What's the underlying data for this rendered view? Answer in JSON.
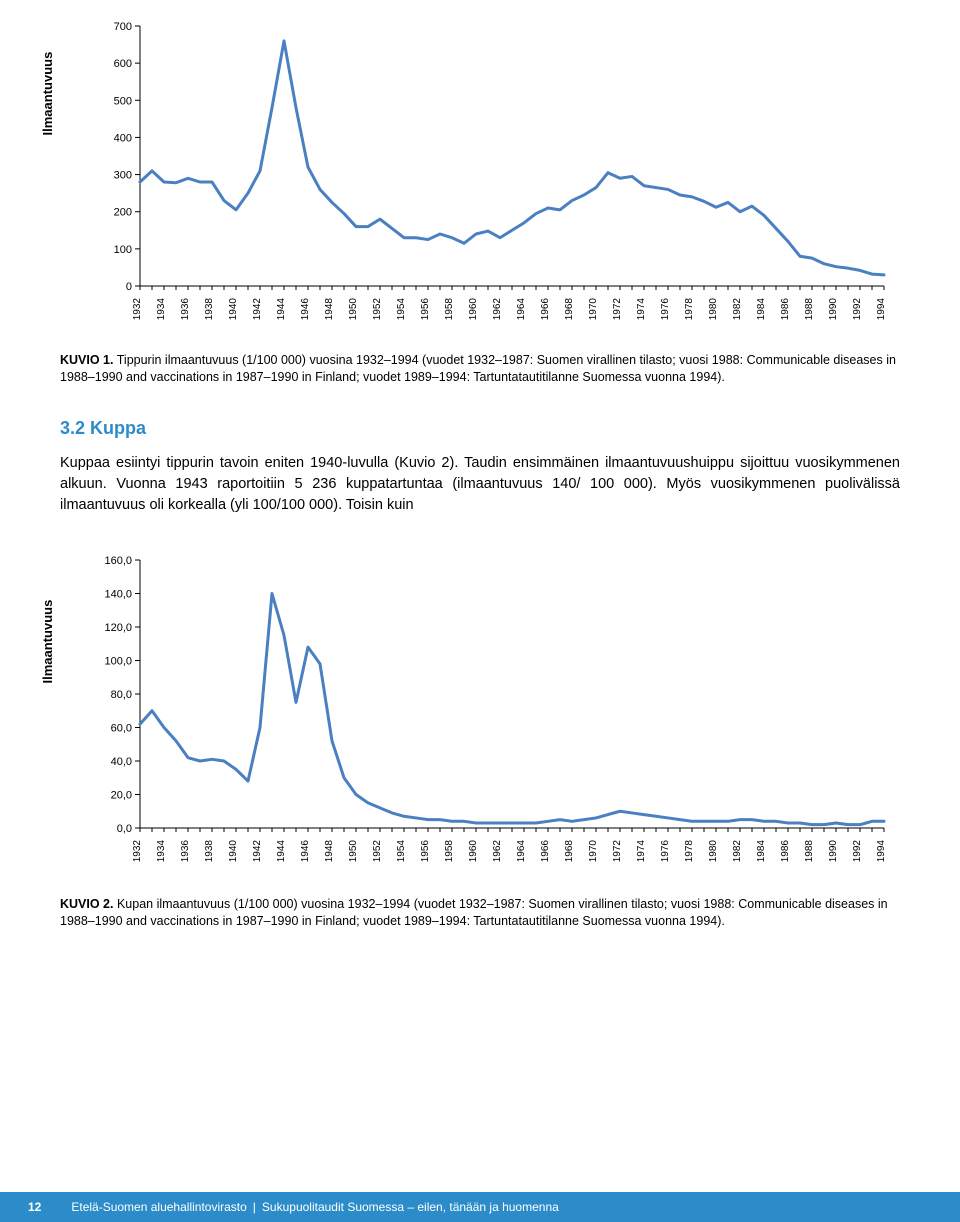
{
  "chart1": {
    "type": "line",
    "y_axis_label": "Ilmaantuvuus",
    "line_color": "#4a7fc1",
    "line_width": 3,
    "background_color": "#ffffff",
    "axis_color": "#000000",
    "ylim": [
      0,
      700
    ],
    "ytick_step": 100,
    "y_ticks": [
      0,
      100,
      200,
      300,
      400,
      500,
      600,
      700
    ],
    "x_ticks": [
      1932,
      1934,
      1936,
      1938,
      1940,
      1942,
      1944,
      1946,
      1948,
      1950,
      1952,
      1954,
      1956,
      1958,
      1960,
      1962,
      1964,
      1966,
      1968,
      1970,
      1972,
      1974,
      1976,
      1978,
      1980,
      1982,
      1984,
      1986,
      1988,
      1990,
      1992,
      1994
    ],
    "xmin": 1932,
    "xmax": 1994,
    "label_fontsize": 11,
    "x_label_rotation": -90,
    "data": [
      {
        "x": 1932,
        "y": 280
      },
      {
        "x": 1933,
        "y": 310
      },
      {
        "x": 1934,
        "y": 280
      },
      {
        "x": 1935,
        "y": 278
      },
      {
        "x": 1936,
        "y": 290
      },
      {
        "x": 1937,
        "y": 280
      },
      {
        "x": 1938,
        "y": 280
      },
      {
        "x": 1939,
        "y": 230
      },
      {
        "x": 1940,
        "y": 205
      },
      {
        "x": 1941,
        "y": 250
      },
      {
        "x": 1942,
        "y": 310
      },
      {
        "x": 1943,
        "y": 480
      },
      {
        "x": 1944,
        "y": 660
      },
      {
        "x": 1945,
        "y": 480
      },
      {
        "x": 1946,
        "y": 320
      },
      {
        "x": 1947,
        "y": 260
      },
      {
        "x": 1948,
        "y": 225
      },
      {
        "x": 1949,
        "y": 195
      },
      {
        "x": 1950,
        "y": 160
      },
      {
        "x": 1951,
        "y": 160
      },
      {
        "x": 1952,
        "y": 180
      },
      {
        "x": 1953,
        "y": 155
      },
      {
        "x": 1954,
        "y": 130
      },
      {
        "x": 1955,
        "y": 130
      },
      {
        "x": 1956,
        "y": 125
      },
      {
        "x": 1957,
        "y": 140
      },
      {
        "x": 1958,
        "y": 130
      },
      {
        "x": 1959,
        "y": 115
      },
      {
        "x": 1960,
        "y": 140
      },
      {
        "x": 1961,
        "y": 148
      },
      {
        "x": 1962,
        "y": 130
      },
      {
        "x": 1963,
        "y": 150
      },
      {
        "x": 1964,
        "y": 170
      },
      {
        "x": 1965,
        "y": 195
      },
      {
        "x": 1966,
        "y": 210
      },
      {
        "x": 1967,
        "y": 205
      },
      {
        "x": 1968,
        "y": 230
      },
      {
        "x": 1969,
        "y": 245
      },
      {
        "x": 1970,
        "y": 265
      },
      {
        "x": 1971,
        "y": 305
      },
      {
        "x": 1972,
        "y": 290
      },
      {
        "x": 1973,
        "y": 295
      },
      {
        "x": 1974,
        "y": 270
      },
      {
        "x": 1975,
        "y": 265
      },
      {
        "x": 1976,
        "y": 260
      },
      {
        "x": 1977,
        "y": 245
      },
      {
        "x": 1978,
        "y": 240
      },
      {
        "x": 1979,
        "y": 228
      },
      {
        "x": 1980,
        "y": 212
      },
      {
        "x": 1981,
        "y": 225
      },
      {
        "x": 1982,
        "y": 200
      },
      {
        "x": 1983,
        "y": 215
      },
      {
        "x": 1984,
        "y": 190
      },
      {
        "x": 1985,
        "y": 155
      },
      {
        "x": 1986,
        "y": 120
      },
      {
        "x": 1987,
        "y": 80
      },
      {
        "x": 1988,
        "y": 75
      },
      {
        "x": 1989,
        "y": 60
      },
      {
        "x": 1990,
        "y": 52
      },
      {
        "x": 1991,
        "y": 48
      },
      {
        "x": 1992,
        "y": 42
      },
      {
        "x": 1993,
        "y": 32
      },
      {
        "x": 1994,
        "y": 30
      }
    ]
  },
  "caption1": {
    "lead": "KUVIO 1.",
    "text": " Tippurin ilmaantuvuus (1/100 000) vuosina 1932–1994 (vuodet 1932–1987: Suomen virallinen tilasto; vuosi 1988: Communicable diseases in 1988–1990 and vaccinations in 1987–1990 in Finland; vuodet 1989–1994: Tartuntatautitilanne Suomessa vuonna 1994)."
  },
  "section_head": "3.2 Kuppa",
  "section_head_color": "#2c8cc9",
  "body_text": "Kuppaa esiintyi tippurin tavoin eniten 1940-luvulla (Kuvio 2). Taudin ensimmäinen ilmaantuvuushuippu sijoittuu vuosikymmenen alkuun. Vuonna 1943 raportoitiin 5 236 kuppatartuntaa (ilmaantuvuus 140/ 100 000). Myös vuosikymmenen puolivälissä ilmaantuvuus oli korkealla (yli 100/100 000). Toisin kuin",
  "chart2": {
    "type": "line",
    "y_axis_label": "Ilmaantuvuus",
    "line_color": "#4a7fc1",
    "line_width": 3,
    "background_color": "#ffffff",
    "axis_color": "#000000",
    "ylim": [
      0,
      160
    ],
    "ytick_step": 20,
    "y_ticks_fmt": ",0",
    "y_ticks": [
      0,
      20,
      40,
      60,
      80,
      100,
      120,
      140,
      160
    ],
    "x_ticks": [
      1932,
      1934,
      1936,
      1938,
      1940,
      1942,
      1944,
      1946,
      1948,
      1950,
      1952,
      1954,
      1956,
      1958,
      1960,
      1962,
      1964,
      1966,
      1968,
      1970,
      1972,
      1974,
      1976,
      1978,
      1980,
      1982,
      1984,
      1986,
      1988,
      1990,
      1992,
      1994
    ],
    "xmin": 1932,
    "xmax": 1994,
    "label_fontsize": 11,
    "x_label_rotation": -90,
    "data": [
      {
        "x": 1932,
        "y": 62
      },
      {
        "x": 1933,
        "y": 70
      },
      {
        "x": 1934,
        "y": 60
      },
      {
        "x": 1935,
        "y": 52
      },
      {
        "x": 1936,
        "y": 42
      },
      {
        "x": 1937,
        "y": 40
      },
      {
        "x": 1938,
        "y": 41
      },
      {
        "x": 1939,
        "y": 40
      },
      {
        "x": 1940,
        "y": 35
      },
      {
        "x": 1941,
        "y": 28
      },
      {
        "x": 1942,
        "y": 60
      },
      {
        "x": 1943,
        "y": 140
      },
      {
        "x": 1944,
        "y": 115
      },
      {
        "x": 1945,
        "y": 75
      },
      {
        "x": 1946,
        "y": 108
      },
      {
        "x": 1947,
        "y": 98
      },
      {
        "x": 1948,
        "y": 52
      },
      {
        "x": 1949,
        "y": 30
      },
      {
        "x": 1950,
        "y": 20
      },
      {
        "x": 1951,
        "y": 15
      },
      {
        "x": 1952,
        "y": 12
      },
      {
        "x": 1953,
        "y": 9
      },
      {
        "x": 1954,
        "y": 7
      },
      {
        "x": 1955,
        "y": 6
      },
      {
        "x": 1956,
        "y": 5
      },
      {
        "x": 1957,
        "y": 5
      },
      {
        "x": 1958,
        "y": 4
      },
      {
        "x": 1959,
        "y": 4
      },
      {
        "x": 1960,
        "y": 3
      },
      {
        "x": 1961,
        "y": 3
      },
      {
        "x": 1962,
        "y": 3
      },
      {
        "x": 1963,
        "y": 3
      },
      {
        "x": 1964,
        "y": 3
      },
      {
        "x": 1965,
        "y": 3
      },
      {
        "x": 1966,
        "y": 4
      },
      {
        "x": 1967,
        "y": 5
      },
      {
        "x": 1968,
        "y": 4
      },
      {
        "x": 1969,
        "y": 5
      },
      {
        "x": 1970,
        "y": 6
      },
      {
        "x": 1971,
        "y": 8
      },
      {
        "x": 1972,
        "y": 10
      },
      {
        "x": 1973,
        "y": 9
      },
      {
        "x": 1974,
        "y": 8
      },
      {
        "x": 1975,
        "y": 7
      },
      {
        "x": 1976,
        "y": 6
      },
      {
        "x": 1977,
        "y": 5
      },
      {
        "x": 1978,
        "y": 4
      },
      {
        "x": 1979,
        "y": 4
      },
      {
        "x": 1980,
        "y": 4
      },
      {
        "x": 1981,
        "y": 4
      },
      {
        "x": 1982,
        "y": 5
      },
      {
        "x": 1983,
        "y": 5
      },
      {
        "x": 1984,
        "y": 4
      },
      {
        "x": 1985,
        "y": 4
      },
      {
        "x": 1986,
        "y": 3
      },
      {
        "x": 1987,
        "y": 3
      },
      {
        "x": 1988,
        "y": 2
      },
      {
        "x": 1989,
        "y": 2
      },
      {
        "x": 1990,
        "y": 3
      },
      {
        "x": 1991,
        "y": 2
      },
      {
        "x": 1992,
        "y": 2
      },
      {
        "x": 1993,
        "y": 4
      },
      {
        "x": 1994,
        "y": 4
      }
    ]
  },
  "caption2": {
    "lead": "KUVIO 2.",
    "text": " Kupan ilmaantuvuus (1/100 000) vuosina 1932–1994 (vuodet 1932–1987: Suomen virallinen tilasto; vuosi 1988: Communicable diseases in 1988–1990 and vaccinations in 1987–1990 in Finland; vuodet 1989–1994: Tartuntatautitilanne Suomessa vuonna 1994)."
  },
  "footer": {
    "page": "12",
    "org": "Etelä-Suomen aluehallintovirasto",
    "title": "Sukupuolitaudit Suomessa – eilen, tänään ja huomenna",
    "bg_color": "#2c8cc9",
    "text_color": "#ffffff"
  }
}
